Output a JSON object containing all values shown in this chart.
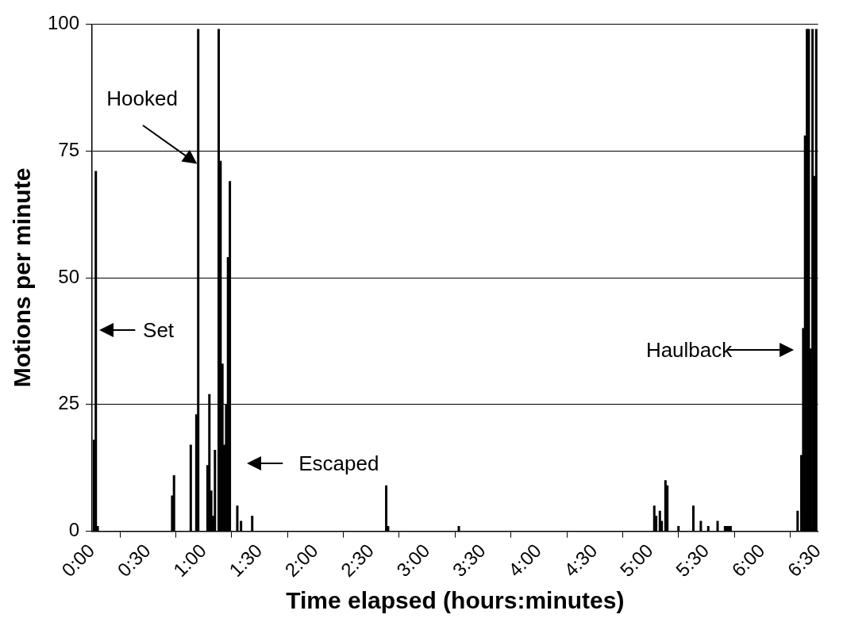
{
  "chart_data": {
    "type": "bar",
    "xlabel": "Time elapsed (hours:minutes)",
    "ylabel": "Motions per minute",
    "x": [
      1,
      2,
      3,
      43,
      44,
      53,
      56,
      57,
      62,
      63,
      64,
      65,
      66,
      68,
      69,
      70,
      71,
      72,
      73,
      74,
      78,
      80,
      86,
      158,
      159,
      197,
      302,
      303,
      305,
      306,
      308,
      309,
      315,
      323,
      327,
      331,
      336,
      340,
      341,
      342,
      343,
      379,
      381,
      382,
      383,
      384,
      385,
      386,
      387,
      388,
      389
    ],
    "values": [
      18,
      71,
      1,
      7,
      11,
      17,
      23,
      99,
      13,
      27,
      8,
      3,
      16,
      99,
      73,
      33,
      17,
      25,
      54,
      69,
      5,
      2,
      3,
      9,
      1,
      1,
      5,
      3,
      4,
      2,
      10,
      9,
      1,
      5,
      2,
      1,
      2,
      1,
      1,
      1,
      1,
      4,
      15,
      40,
      78,
      99,
      99,
      36,
      99,
      70,
      99
    ],
    "color": "#000000",
    "xlim": [
      0,
      390
    ],
    "xticks": [
      {
        "value": 0,
        "label": "0:00"
      },
      {
        "value": 30,
        "label": "0:30"
      },
      {
        "value": 60,
        "label": "1:00"
      },
      {
        "value": 90,
        "label": "1:30"
      },
      {
        "value": 120,
        "label": "2:00"
      },
      {
        "value": 150,
        "label": "2:30"
      },
      {
        "value": 180,
        "label": "3:00"
      },
      {
        "value": 210,
        "label": "3:30"
      },
      {
        "value": 240,
        "label": "4:00"
      },
      {
        "value": 270,
        "label": "4:30"
      },
      {
        "value": 300,
        "label": "5:00"
      },
      {
        "value": 330,
        "label": "5:30"
      },
      {
        "value": 360,
        "label": "6:00"
      },
      {
        "value": 390,
        "label": "6:30"
      }
    ],
    "ylim": [
      0,
      100
    ],
    "yticks": [
      0,
      25,
      50,
      75,
      100
    ],
    "grid": "y",
    "legend": false,
    "annotations": [
      "Set",
      "Hooked",
      "Escaped",
      "Haulback"
    ]
  }
}
